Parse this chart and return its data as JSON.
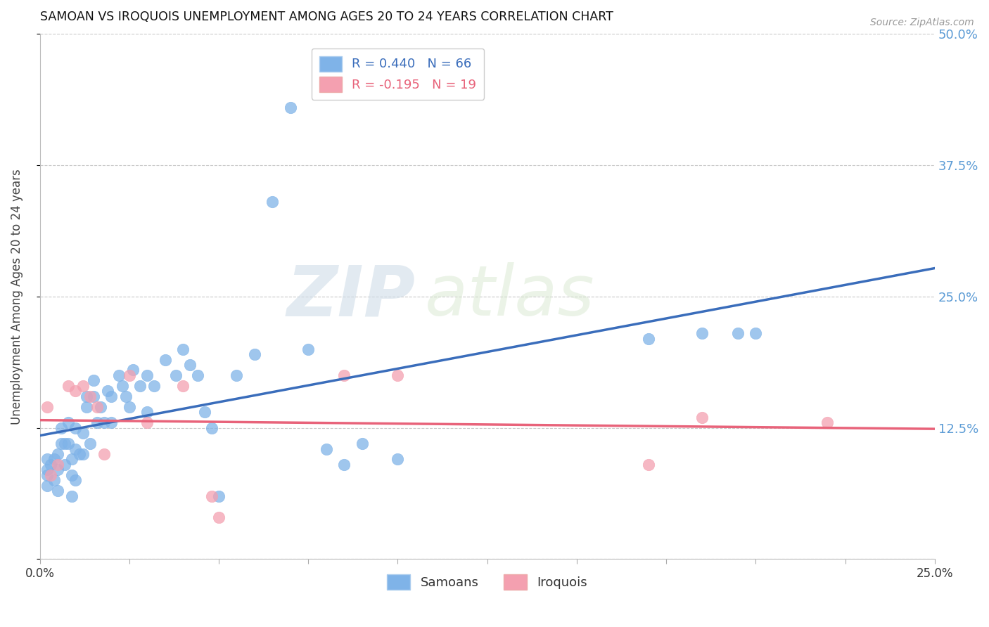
{
  "title": "SAMOAN VS IROQUOIS UNEMPLOYMENT AMONG AGES 20 TO 24 YEARS CORRELATION CHART",
  "source": "Source: ZipAtlas.com",
  "ylabel": "Unemployment Among Ages 20 to 24 years",
  "xlim": [
    0.0,
    0.25
  ],
  "ylim": [
    0.0,
    0.5
  ],
  "xticks": [
    0.0,
    0.025,
    0.05,
    0.075,
    0.1,
    0.125,
    0.15,
    0.175,
    0.2,
    0.225,
    0.25
  ],
  "yticks": [
    0.0,
    0.125,
    0.25,
    0.375,
    0.5
  ],
  "ytick_labels": [
    "",
    "12.5%",
    "25.0%",
    "37.5%",
    "50.0%"
  ],
  "xtick_labels": [
    "0.0%",
    "",
    "",
    "",
    "",
    "",
    "",
    "",
    "",
    "",
    "25.0%"
  ],
  "R_samoan": 0.44,
  "N_samoan": 66,
  "R_iroquois": -0.195,
  "N_iroquois": 19,
  "samoan_color": "#7fb3e8",
  "iroquois_color": "#f4a0b0",
  "samoan_line_color": "#3a6dbb",
  "iroquois_line_color": "#e8637a",
  "background_color": "#ffffff",
  "grid_color": "#c8c8c8",
  "watermark_zip": "ZIP",
  "watermark_atlas": "atlas",
  "samoan_x": [
    0.002,
    0.002,
    0.002,
    0.002,
    0.003,
    0.004,
    0.004,
    0.005,
    0.005,
    0.005,
    0.006,
    0.006,
    0.007,
    0.007,
    0.008,
    0.008,
    0.009,
    0.009,
    0.009,
    0.01,
    0.01,
    0.01,
    0.011,
    0.012,
    0.012,
    0.013,
    0.013,
    0.014,
    0.015,
    0.015,
    0.016,
    0.017,
    0.018,
    0.019,
    0.02,
    0.02,
    0.022,
    0.023,
    0.024,
    0.025,
    0.026,
    0.028,
    0.03,
    0.03,
    0.032,
    0.035,
    0.038,
    0.04,
    0.042,
    0.044,
    0.046,
    0.048,
    0.05,
    0.055,
    0.06,
    0.065,
    0.07,
    0.075,
    0.08,
    0.085,
    0.09,
    0.1,
    0.17,
    0.185,
    0.195,
    0.2
  ],
  "samoan_y": [
    0.095,
    0.085,
    0.08,
    0.07,
    0.09,
    0.095,
    0.075,
    0.1,
    0.085,
    0.065,
    0.125,
    0.11,
    0.11,
    0.09,
    0.13,
    0.11,
    0.095,
    0.08,
    0.06,
    0.125,
    0.105,
    0.075,
    0.1,
    0.12,
    0.1,
    0.155,
    0.145,
    0.11,
    0.17,
    0.155,
    0.13,
    0.145,
    0.13,
    0.16,
    0.155,
    0.13,
    0.175,
    0.165,
    0.155,
    0.145,
    0.18,
    0.165,
    0.175,
    0.14,
    0.165,
    0.19,
    0.175,
    0.2,
    0.185,
    0.175,
    0.14,
    0.125,
    0.06,
    0.175,
    0.195,
    0.34,
    0.43,
    0.2,
    0.105,
    0.09,
    0.11,
    0.095,
    0.21,
    0.215,
    0.215,
    0.215
  ],
  "iroquois_x": [
    0.002,
    0.003,
    0.005,
    0.008,
    0.01,
    0.012,
    0.014,
    0.016,
    0.018,
    0.025,
    0.03,
    0.04,
    0.048,
    0.05,
    0.085,
    0.1,
    0.17,
    0.185,
    0.22
  ],
  "iroquois_y": [
    0.145,
    0.08,
    0.09,
    0.165,
    0.16,
    0.165,
    0.155,
    0.145,
    0.1,
    0.175,
    0.13,
    0.165,
    0.06,
    0.04,
    0.175,
    0.175,
    0.09,
    0.135,
    0.13
  ]
}
